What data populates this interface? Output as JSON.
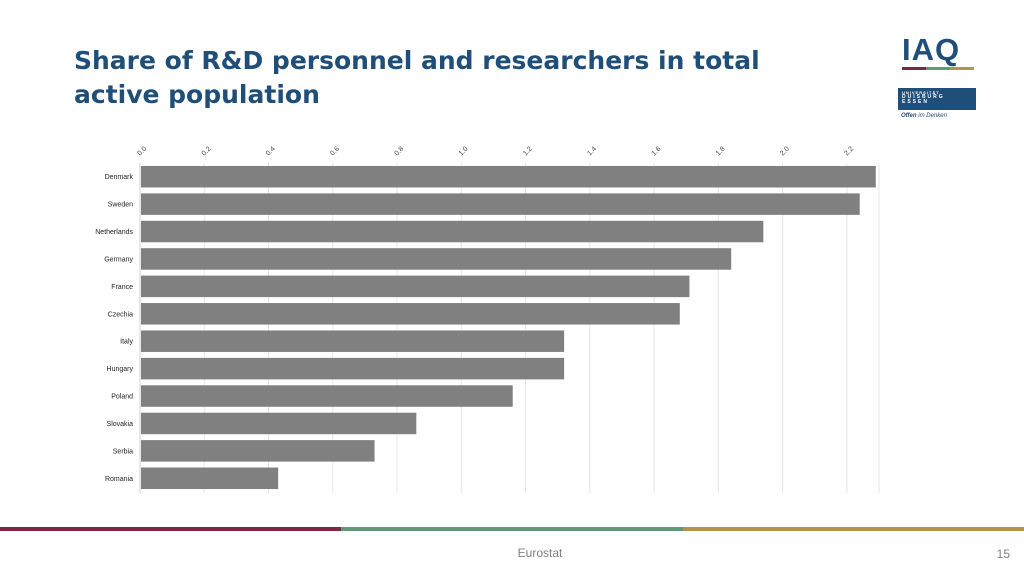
{
  "slide": {
    "title": "Share of R&D personnel and researchers in total active population",
    "source": "Eurostat",
    "page_number": "15"
  },
  "logos": {
    "iaq_text": "IAQ",
    "uni_line1": "UNIVERSITÄT",
    "uni_line2": "DUISBURG",
    "uni_line3": "ESSEN",
    "tagline_bold": "Offen",
    "tagline_rest": "im Denken"
  },
  "colors": {
    "title": "#1f4e79",
    "bar": "#808080",
    "grid": "#e6e6e6",
    "stripe": [
      "#7b2a45",
      "#5f9a78",
      "#b8904f"
    ]
  },
  "chart_data": {
    "type": "bar",
    "orientation": "horizontal",
    "title": "",
    "xlabel": "",
    "ylabel": "",
    "xlim": [
      0,
      2.3
    ],
    "x_ticks": [
      "0.0",
      "0.2",
      "0.4",
      "0.6",
      "0.8",
      "1.0",
      "1.2",
      "1.4",
      "1.6",
      "1.8",
      "2.0",
      "2.2"
    ],
    "tick_axis_position": "top",
    "grid": true,
    "categories": [
      "Denmark",
      "Sweden",
      "Netherlands",
      "Germany",
      "France",
      "Czechia",
      "Italy",
      "Hungary",
      "Poland",
      "Slovakia",
      "Serbia",
      "Romania"
    ],
    "values": [
      2.29,
      2.24,
      1.94,
      1.84,
      1.71,
      1.68,
      1.32,
      1.32,
      1.16,
      0.86,
      0.73,
      0.43
    ]
  }
}
